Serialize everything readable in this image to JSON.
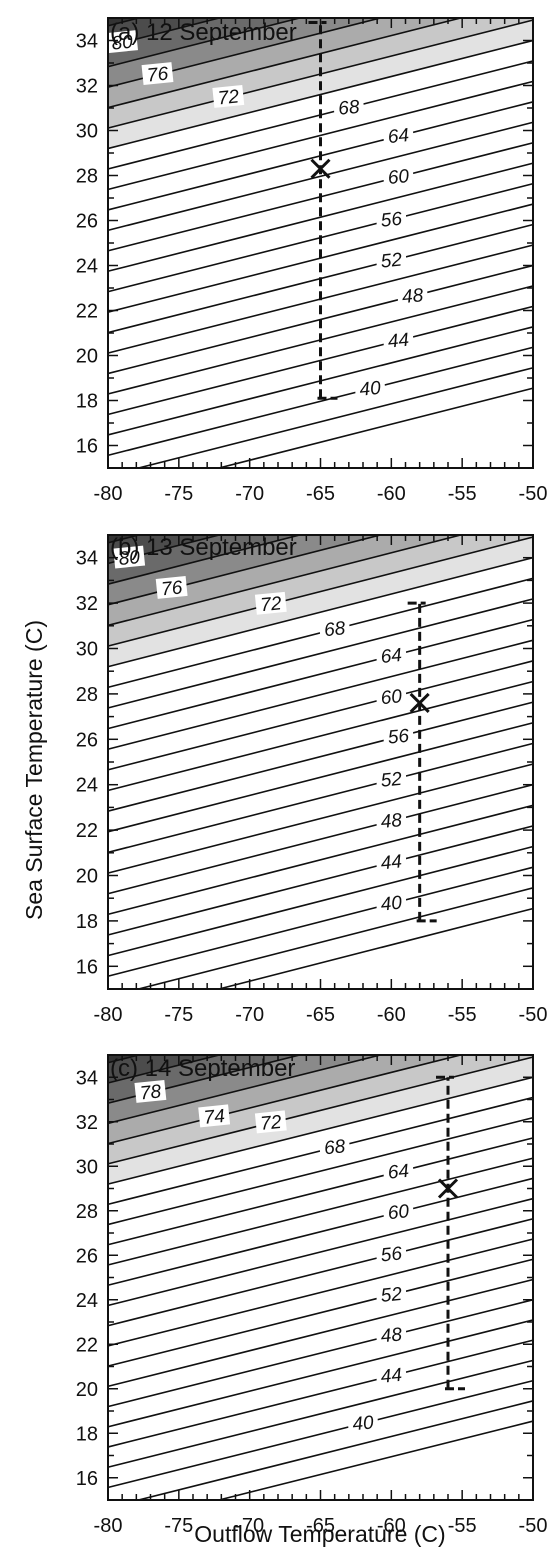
{
  "figure": {
    "ylabel": "Sea Surface Temperature (C)",
    "xlabel": "Outflow Temperature (C)"
  },
  "chart_data": [
    {
      "type": "contour",
      "title": "(a) 12 September",
      "xlim": [
        -80,
        -50
      ],
      "ylim": [
        15,
        35
      ],
      "xticks": [
        -80,
        -75,
        -70,
        -65,
        -60,
        -55,
        -50
      ],
      "yticks": [
        16,
        18,
        20,
        22,
        24,
        26,
        28,
        30,
        32,
        34
      ],
      "x_tick_labels": [
        "-80",
        "-75",
        "-70",
        "-65",
        "-60",
        "-55",
        "-50"
      ],
      "y_tick_labels": [
        "16",
        "18",
        "20",
        "22",
        "24",
        "26",
        "28",
        "30",
        "32",
        "34"
      ],
      "contour_slope": 0.16,
      "contour_values": [
        36,
        38,
        40,
        42,
        44,
        46,
        48,
        50,
        52,
        54,
        56,
        58,
        60,
        62,
        64,
        66,
        68,
        70,
        72,
        74,
        76,
        78,
        80,
        82,
        84
      ],
      "shading": {
        "threshold": 70,
        "colors": [
          "#e2e2e2",
          "#c8c8c8",
          "#ababab",
          "#8a8a8a",
          "#6a6a6a",
          "#4c4c4c",
          "#333333",
          "#222222"
        ]
      },
      "contour_labels": [
        {
          "value": 80,
          "x": -79.0
        },
        {
          "value": 76,
          "x": -76.5
        },
        {
          "value": 72,
          "x": -71.5
        },
        {
          "value": 68,
          "x": -63.0
        },
        {
          "value": 64,
          "x": -59.5
        },
        {
          "value": 60,
          "x": -59.5
        },
        {
          "value": 56,
          "x": -60.0
        },
        {
          "value": 52,
          "x": -60.0
        },
        {
          "value": 48,
          "x": -58.5
        },
        {
          "value": 44,
          "x": -59.5
        },
        {
          "value": 40,
          "x": -61.5
        }
      ],
      "marker": {
        "symbol": "X",
        "x": -65.0,
        "y": 28.3
      },
      "range_bar": {
        "x": -65.0,
        "y_low": 18.1,
        "y_high": 34.8
      }
    },
    {
      "type": "contour",
      "title": "(b) 13 September",
      "xlim": [
        -80,
        -50
      ],
      "ylim": [
        15,
        35
      ],
      "xticks": [
        -80,
        -75,
        -70,
        -65,
        -60,
        -55,
        -50
      ],
      "yticks": [
        16,
        18,
        20,
        22,
        24,
        26,
        28,
        30,
        32,
        34
      ],
      "x_tick_labels": [
        "-80",
        "-75",
        "-70",
        "-65",
        "-60",
        "-55",
        "-50"
      ],
      "y_tick_labels": [
        "16",
        "18",
        "20",
        "22",
        "24",
        "26",
        "28",
        "30",
        "32",
        "34"
      ],
      "contour_slope": 0.16,
      "contour_values": [
        36,
        38,
        40,
        42,
        44,
        46,
        48,
        50,
        52,
        54,
        56,
        58,
        60,
        62,
        64,
        66,
        68,
        70,
        72,
        74,
        76,
        78,
        80,
        82,
        84
      ],
      "shading": {
        "threshold": 70,
        "colors": [
          "#e2e2e2",
          "#c8c8c8",
          "#ababab",
          "#8a8a8a",
          "#6a6a6a",
          "#4c4c4c",
          "#333333",
          "#222222"
        ]
      },
      "contour_labels": [
        {
          "value": 80,
          "x": -78.5
        },
        {
          "value": 76,
          "x": -75.5
        },
        {
          "value": 72,
          "x": -68.5
        },
        {
          "value": 68,
          "x": -64.0
        },
        {
          "value": 64,
          "x": -60.0
        },
        {
          "value": 60,
          "x": -60.0
        },
        {
          "value": 56,
          "x": -59.5
        },
        {
          "value": 52,
          "x": -60.0
        },
        {
          "value": 48,
          "x": -60.0
        },
        {
          "value": 44,
          "x": -60.0
        },
        {
          "value": 40,
          "x": -60.0
        }
      ],
      "marker": {
        "symbol": "X",
        "x": -58.0,
        "y": 27.6
      },
      "range_bar": {
        "x": -58.0,
        "y_low": 18.0,
        "y_high": 32.0
      }
    },
    {
      "type": "contour",
      "title": "(c) 14 September",
      "xlim": [
        -80,
        -50
      ],
      "ylim": [
        15,
        35
      ],
      "xticks": [
        -80,
        -75,
        -70,
        -65,
        -60,
        -55,
        -50
      ],
      "yticks": [
        16,
        18,
        20,
        22,
        24,
        26,
        28,
        30,
        32,
        34
      ],
      "x_tick_labels": [
        "-80",
        "-75",
        "-70",
        "-65",
        "-60",
        "-55",
        "-50"
      ],
      "y_tick_labels": [
        "16",
        "18",
        "20",
        "22",
        "24",
        "26",
        "28",
        "30",
        "32",
        "34"
      ],
      "contour_slope": 0.16,
      "contour_values": [
        36,
        38,
        40,
        42,
        44,
        46,
        48,
        50,
        52,
        54,
        56,
        58,
        60,
        62,
        64,
        66,
        68,
        70,
        72,
        74,
        76,
        78,
        80,
        82,
        84
      ],
      "shading": {
        "threshold": 70,
        "colors": [
          "#e2e2e2",
          "#c8c8c8",
          "#ababab",
          "#8a8a8a",
          "#6a6a6a",
          "#4c4c4c",
          "#333333",
          "#222222"
        ]
      },
      "contour_labels": [
        {
          "value": 78,
          "x": -77.0
        },
        {
          "value": 74,
          "x": -72.5
        },
        {
          "value": 72,
          "x": -68.5
        },
        {
          "value": 68,
          "x": -64.0
        },
        {
          "value": 64,
          "x": -59.5
        },
        {
          "value": 60,
          "x": -59.5
        },
        {
          "value": 56,
          "x": -60.0
        },
        {
          "value": 52,
          "x": -60.0
        },
        {
          "value": 48,
          "x": -60.0
        },
        {
          "value": 44,
          "x": -60.0
        },
        {
          "value": 40,
          "x": -62.0
        }
      ],
      "marker": {
        "symbol": "X",
        "x": -56.0,
        "y": 29.0
      },
      "range_bar": {
        "x": -56.0,
        "y_low": 20.0,
        "y_high": 34.0
      }
    }
  ]
}
